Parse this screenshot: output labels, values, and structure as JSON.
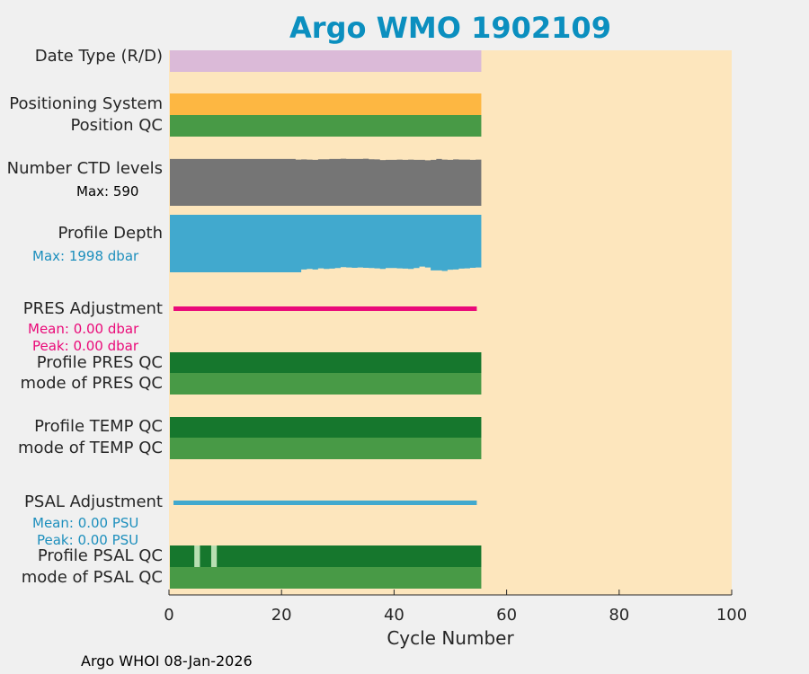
{
  "title": "Argo WMO 1902109",
  "footer": "Argo WHOI 08-Jan-2026",
  "rows": {
    "date_type": "Date Type (R/D)",
    "positioning_system": "Positioning System",
    "position_qc": "Position QC",
    "ctd_levels": "Number CTD levels",
    "ctd_max": "Max: 590",
    "profile_depth": "Profile Depth",
    "depth_max": "Max: 1998 dbar",
    "pres_adjustment": "PRES Adjustment",
    "pres_mean": "Mean: 0.00 dbar",
    "pres_peak": "Peak: 0.00 dbar",
    "profile_pres_qc": "Profile PRES QC",
    "mode_pres_qc": "mode of PRES QC",
    "profile_temp_qc": "Profile TEMP QC",
    "mode_temp_qc": "mode of TEMP QC",
    "psal_adjustment": "PSAL Adjustment",
    "psal_mean": "Mean: 0.00 PSU",
    "psal_peak": "Peak: 0.00 PSU",
    "profile_psal_qc": "Profile PSAL QC",
    "mode_psal_qc": "mode of PSAL QC"
  },
  "colors": {
    "background": "#fde6bd",
    "date_type": "#dbbad8",
    "positioning_system": "#fdb742",
    "qc_mode": "#489a46",
    "qc_profile": "#16772d",
    "qc_light": "#b8dfb2",
    "ctd": "#757575",
    "depth": "#41a9ce",
    "pres_adj": "#ea0a79",
    "psal_adj": "#41a9ce",
    "title": "#0b8fbf",
    "depth_text": "#1d8fbd",
    "pres_text": "#ea0a79",
    "psal_text": "#1d8fbd"
  },
  "chart_data": {
    "type": "bar",
    "title": "Argo WMO 1902109",
    "xlabel": "Cycle Number",
    "ylabel": "",
    "xlim": [
      0,
      100
    ],
    "xticks": [
      0,
      20,
      40,
      60,
      80,
      100
    ],
    "cycles_plotted": [
      0,
      55
    ],
    "ctd_levels_max": 590,
    "ctd_levels_series": [
      [
        0,
        530
      ],
      [
        22,
        530
      ],
      [
        23,
        522
      ],
      [
        24,
        525
      ],
      [
        25,
        522
      ],
      [
        26,
        520
      ],
      [
        27,
        527
      ],
      [
        28,
        527
      ],
      [
        29,
        530
      ],
      [
        30,
        530
      ],
      [
        31,
        533
      ],
      [
        32,
        530
      ],
      [
        33,
        530
      ],
      [
        34,
        530
      ],
      [
        35,
        533
      ],
      [
        36,
        527
      ],
      [
        37,
        525
      ],
      [
        38,
        518
      ],
      [
        39,
        520
      ],
      [
        40,
        520
      ],
      [
        41,
        522
      ],
      [
        42,
        520
      ],
      [
        43,
        522
      ],
      [
        44,
        520
      ],
      [
        45,
        520
      ],
      [
        46,
        515
      ],
      [
        47,
        520
      ],
      [
        48,
        530
      ],
      [
        49,
        522
      ],
      [
        50,
        520
      ],
      [
        51,
        525
      ],
      [
        52,
        522
      ],
      [
        53,
        522
      ],
      [
        54,
        520
      ],
      [
        55,
        522
      ]
    ],
    "profile_depth_max_dbar": 1998,
    "profile_depth_series": [
      [
        0,
        1998
      ],
      [
        22,
        1998
      ],
      [
        23,
        1998
      ],
      [
        24,
        1900
      ],
      [
        25,
        1880
      ],
      [
        26,
        1900
      ],
      [
        27,
        1860
      ],
      [
        28,
        1880
      ],
      [
        29,
        1870
      ],
      [
        30,
        1850
      ],
      [
        31,
        1820
      ],
      [
        32,
        1830
      ],
      [
        33,
        1840
      ],
      [
        34,
        1830
      ],
      [
        35,
        1840
      ],
      [
        36,
        1850
      ],
      [
        37,
        1860
      ],
      [
        38,
        1880
      ],
      [
        39,
        1850
      ],
      [
        40,
        1850
      ],
      [
        41,
        1860
      ],
      [
        42,
        1870
      ],
      [
        43,
        1880
      ],
      [
        44,
        1850
      ],
      [
        45,
        1800
      ],
      [
        46,
        1830
      ],
      [
        47,
        1930
      ],
      [
        48,
        1930
      ],
      [
        49,
        1950
      ],
      [
        50,
        1910
      ],
      [
        51,
        1900
      ],
      [
        52,
        1870
      ],
      [
        53,
        1860
      ],
      [
        54,
        1840
      ],
      [
        55,
        1830
      ]
    ],
    "pres_adjustment_mean_dbar": 0.0,
    "pres_adjustment_peak_dbar": 0.0,
    "psal_adjustment_mean_psu": 0.0,
    "psal_adjustment_peak_psu": 0.0,
    "profile_psal_qc_light_cycles": [
      5,
      8
    ]
  }
}
